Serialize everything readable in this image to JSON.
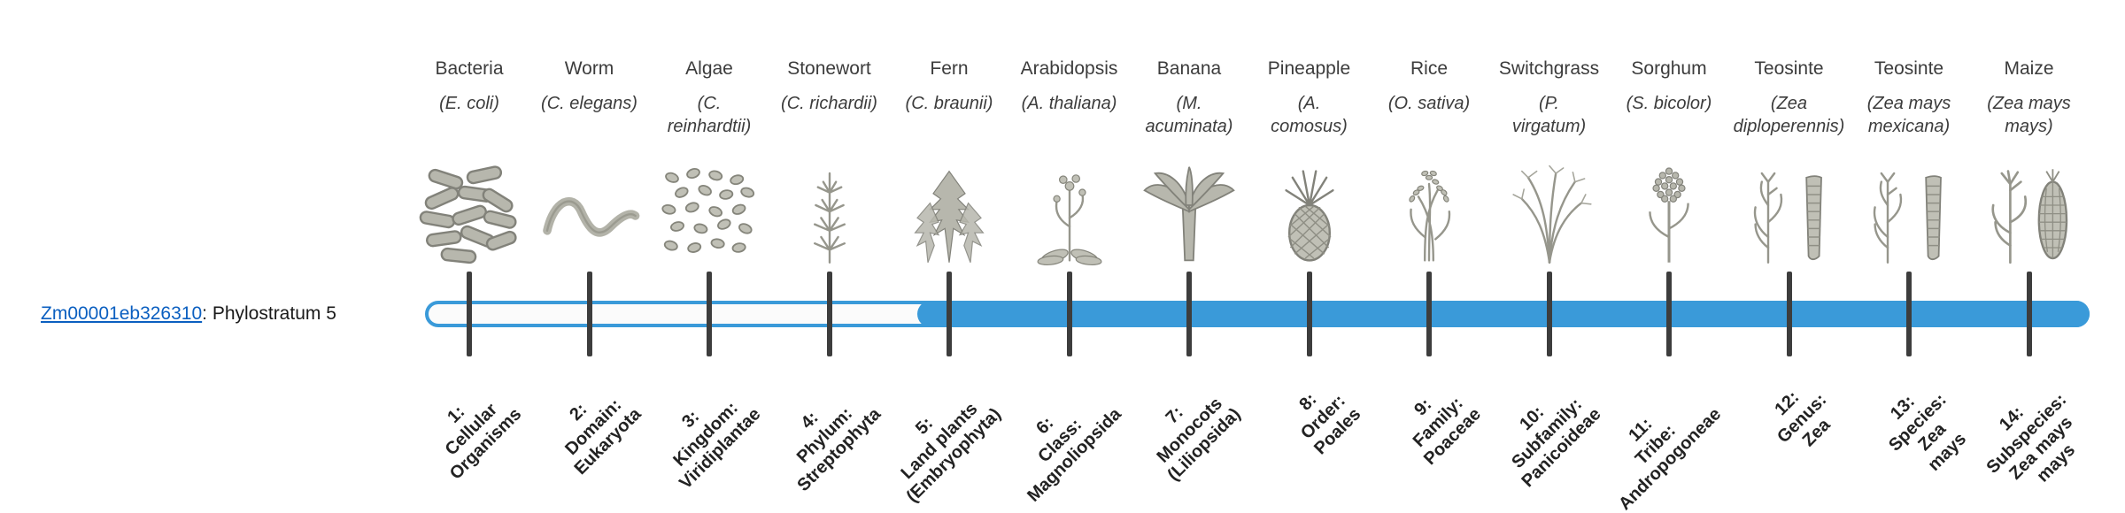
{
  "colors": {
    "accent": "#3a9ad9",
    "tick": "#3d3d3d",
    "link": "#0b5fc0",
    "text": "#3c3c3c"
  },
  "gene": {
    "id": "Zm00001eb326310",
    "suffix": ": Phylostratum 5",
    "phylostratum": 5
  },
  "strata": [
    {
      "n": 1,
      "name": "Bacteria",
      "sci": "(E. coli)",
      "icon": "bacteria-icon",
      "tick_label": "1:\nCellular\nOrganisms"
    },
    {
      "n": 2,
      "name": "Worm",
      "sci": "(C. elegans)",
      "icon": "worm-icon",
      "tick_label": "2:\nDomain:\nEukaryota"
    },
    {
      "n": 3,
      "name": "Algae",
      "sci": "(C.\nreinhardtii)",
      "icon": "algae-icon",
      "tick_label": "3:\nKingdom:\nViridiplantae"
    },
    {
      "n": 4,
      "name": "Stonewort",
      "sci": "(C. richardii)",
      "icon": "stonewort-icon",
      "tick_label": "4:\nPhylum:\nStreptophyta"
    },
    {
      "n": 5,
      "name": "Fern",
      "sci": "(C. braunii)",
      "icon": "fern-icon",
      "tick_label": "5:\nLand plants\n(Embryophyta)"
    },
    {
      "n": 6,
      "name": "Arabidopsis",
      "sci": "(A. thaliana)",
      "icon": "arabidopsis-icon",
      "tick_label": "6:\nClass:\nMagnoliopsida"
    },
    {
      "n": 7,
      "name": "Banana",
      "sci": "(M.\nacuminata)",
      "icon": "banana-icon",
      "tick_label": "7:\nMonocots\n(Liliopsida)"
    },
    {
      "n": 8,
      "name": "Pineapple",
      "sci": "(A.\ncomosus)",
      "icon": "pineapple-icon",
      "tick_label": "8:\nOrder:\nPoales"
    },
    {
      "n": 9,
      "name": "Rice",
      "sci": "(O. sativa)",
      "icon": "rice-icon",
      "tick_label": "9:\nFamily:\nPoaceae"
    },
    {
      "n": 10,
      "name": "Switchgrass",
      "sci": "(P.\nvirgatum)",
      "icon": "switchgrass-icon",
      "tick_label": "10:\nSubfamily:\nPanicoideae"
    },
    {
      "n": 11,
      "name": "Sorghum",
      "sci": "(S. bicolor)",
      "icon": "sorghum-icon",
      "tick_label": "11:\nTribe:\nAndropogoneae"
    },
    {
      "n": 12,
      "name": "Teosinte",
      "sci": "(Zea\ndiploperennis)",
      "icon": "teosinte-icon",
      "tick_label": "12:\nGenus:\nZea"
    },
    {
      "n": 13,
      "name": "Teosinte",
      "sci": "(Zea mays\nmexicana)",
      "icon": "teosinte-icon",
      "tick_label": "13:\nSpecies:\nZea\nmays"
    },
    {
      "n": 14,
      "name": "Maize",
      "sci": "(Zea mays\nmays)",
      "icon": "maize-icon",
      "tick_label": "14:\nSubspecies:\nZea mays\nmays"
    }
  ]
}
